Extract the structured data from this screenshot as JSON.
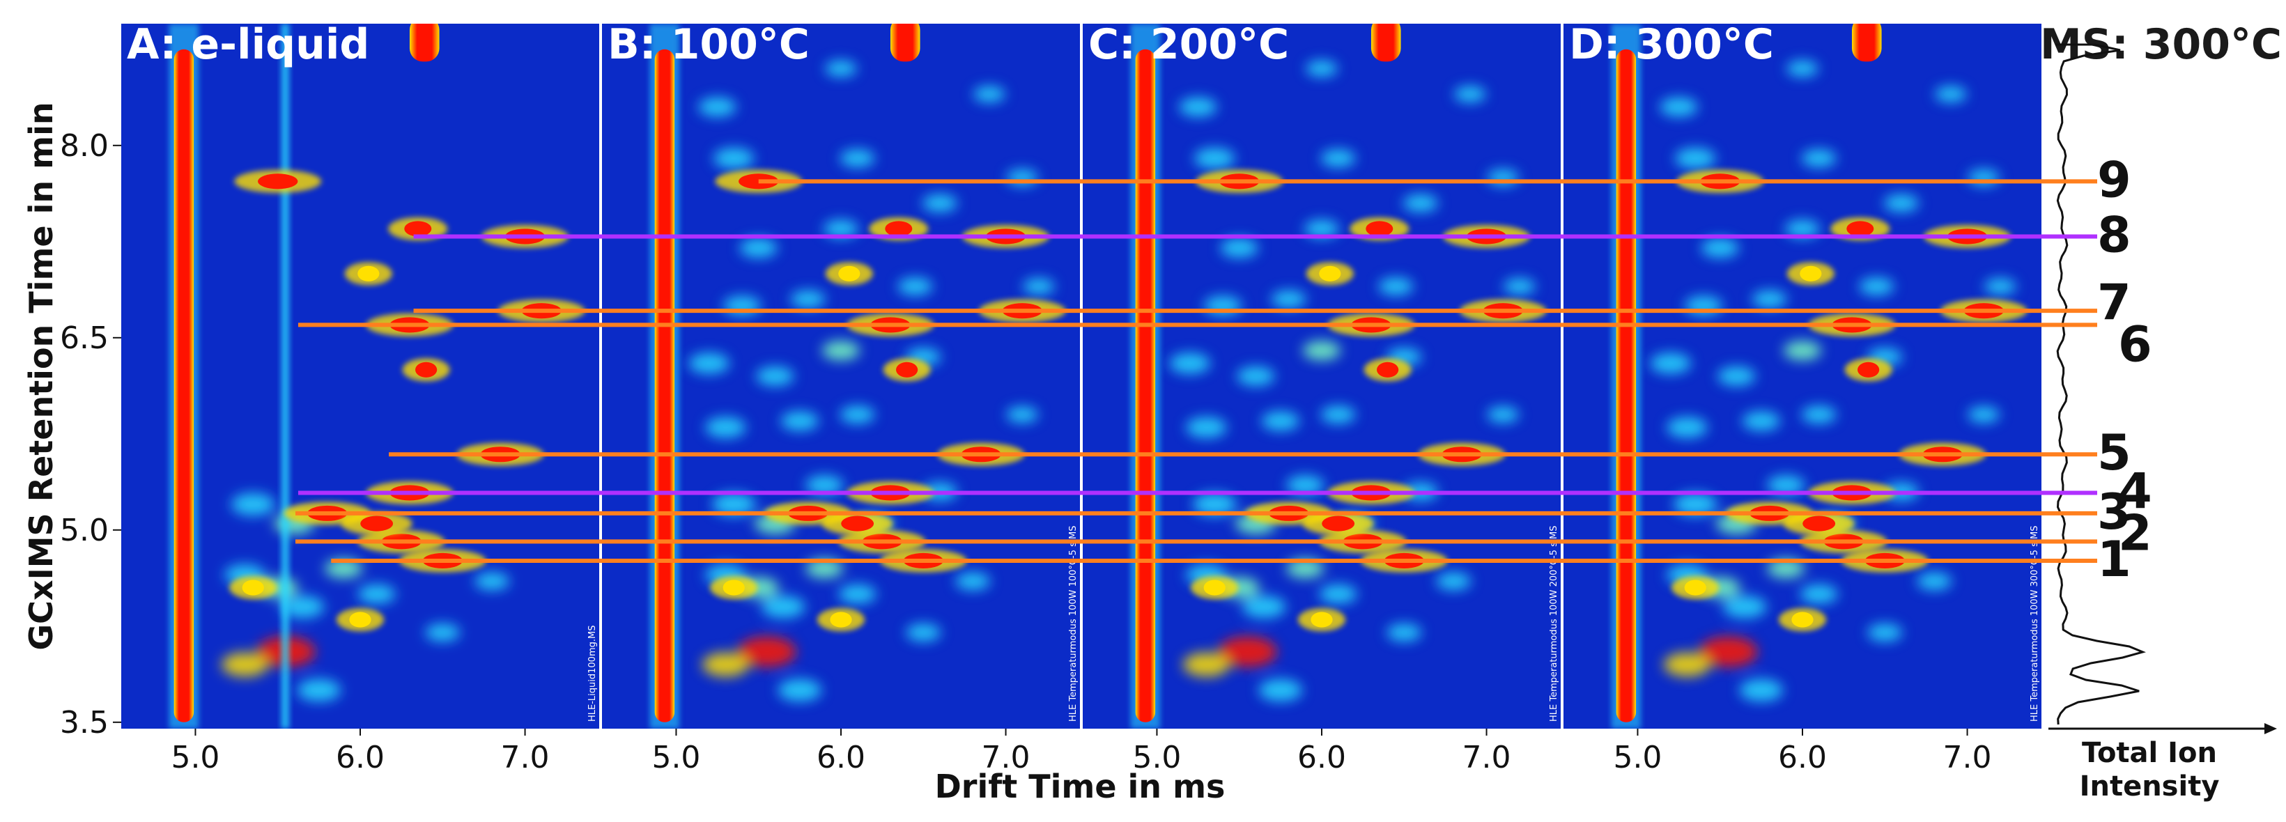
{
  "chart_data": {
    "type": "heatmap",
    "panels": [
      {
        "title": "A:  e-liquid",
        "side_text": "HLE-Liquid100mg.MS"
      },
      {
        "title": "B:  100°C",
        "side_text": "HLE Temperaturmodus 100W 100°C-5 s.MS"
      },
      {
        "title": "C:  200°C",
        "side_text": "HLE Temperaturmodus 100W 200°C-5 s.MS"
      },
      {
        "title": "D:  300°C",
        "side_text": "HLE Temperaturmodus 100W 300°C-5 s.MS"
      }
    ],
    "ms_panel": {
      "title": "MS: 300°C",
      "xlabel": "Total Ion Intensity"
    },
    "xlabel": "Drift Time in ms",
    "ylabel": "GCxIMS Retention Time in min",
    "x_ticks": [
      "5.0",
      "6.0",
      "7.0"
    ],
    "x_tick_values": [
      5.0,
      6.0,
      7.0
    ],
    "y_ticks": [
      "3.5",
      "5.0",
      "6.5",
      "8.0"
    ],
    "y_tick_values": [
      3.5,
      5.0,
      6.5,
      8.0
    ],
    "xlim": [
      4.55,
      7.45
    ],
    "ylim": [
      3.45,
      8.95
    ],
    "rip_drift_time": 4.93,
    "marked_peaks": [
      {
        "label": "1",
        "drift_time": 6.5,
        "retention_time": 4.76,
        "color": "#ff7f1e"
      },
      {
        "label": "2",
        "drift_time": 6.25,
        "retention_time": 4.91,
        "color": "#ff7f1e"
      },
      {
        "label": "3",
        "drift_time": 5.8,
        "retention_time": 5.13,
        "color": "#ff7f1e"
      },
      {
        "label": "4",
        "drift_time": 6.3,
        "retention_time": 5.29,
        "color": "#b030ff"
      },
      {
        "label": "5",
        "drift_time": 6.85,
        "retention_time": 5.59,
        "color": "#ff7f1e"
      },
      {
        "label": "6",
        "drift_time": 6.3,
        "retention_time": 6.6,
        "color": "#ff7f1e"
      },
      {
        "label": "7",
        "drift_time": 7.1,
        "retention_time": 6.71,
        "color": "#ff7f1e"
      },
      {
        "label": "8",
        "drift_time": 7.0,
        "retention_time": 7.29,
        "color": "#b030ff"
      },
      {
        "label": "9",
        "drift_time": 5.5,
        "retention_time": 7.72,
        "color": "#ff7f1e"
      }
    ],
    "colors": {
      "background": "#0b2bc7",
      "rip": "#ff1200",
      "line_orange": "#ff7f1e",
      "line_purple": "#b030ff"
    }
  }
}
